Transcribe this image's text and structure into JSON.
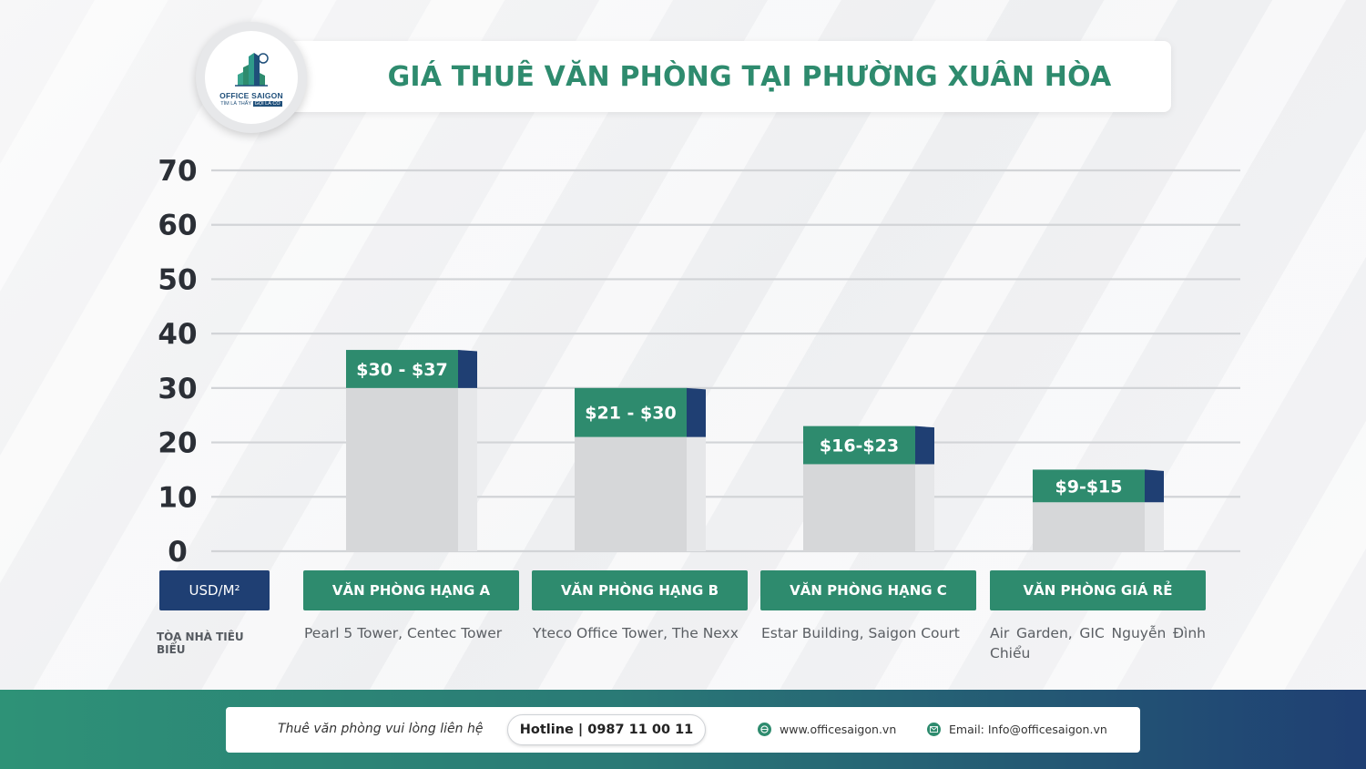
{
  "header": {
    "title": "GIÁ THUÊ VĂN PHÒNG TẠI PHƯỜNG XUÂN HÒA",
    "logo_name": "OFFICE SAIGON",
    "logo_tag_1": "TÌM LÀ THẤY",
    "logo_tag_2": "GỌI LÀ CÓ"
  },
  "colors": {
    "brand_green": "#2e8b6e",
    "brand_navy": "#1f3f73",
    "bar_gray": "#d6d7d9"
  },
  "chart_data": {
    "type": "bar",
    "y_ticks": [
      "0",
      "10",
      "20",
      "30",
      "40",
      "50",
      "60",
      "70"
    ],
    "ylim": [
      0,
      70
    ],
    "grid": true,
    "categories": [
      "VĂN PHÒNG HẠNG A",
      "VĂN PHÒNG HẠNG B",
      "VĂN PHÒNG HẠNG C",
      "VĂN PHÒNG GIÁ RẺ"
    ],
    "series": [
      {
        "low": 30,
        "high": 37,
        "label": "$30 - $37"
      },
      {
        "low": 21,
        "high": 30,
        "label": "$21 - $30"
      },
      {
        "low": 16,
        "high": 23,
        "label": "$16-$23"
      },
      {
        "low": 9,
        "high": 15,
        "label": "$9-$15"
      }
    ],
    "unit_label": "USD/M²"
  },
  "row_label": "TÒA NHÀ TIÊU BIỂU",
  "buildings": [
    "Pearl 5 Tower, Centec Tower",
    "Yteco Office Tower, The Nexx",
    "Estar Building, Saigon Court",
    "Air Garden, GIC Nguyễn Đình Chiểu"
  ],
  "footer": {
    "contact": "Thuê văn phòng vui lòng liên hệ",
    "hotline": "Hotline | 0987 11 00 11",
    "website": "www.officesaigon.vn",
    "email": "Email: Info@officesaigon.vn",
    "website_icon": "globe-icon",
    "email_icon": "mail-icon"
  }
}
